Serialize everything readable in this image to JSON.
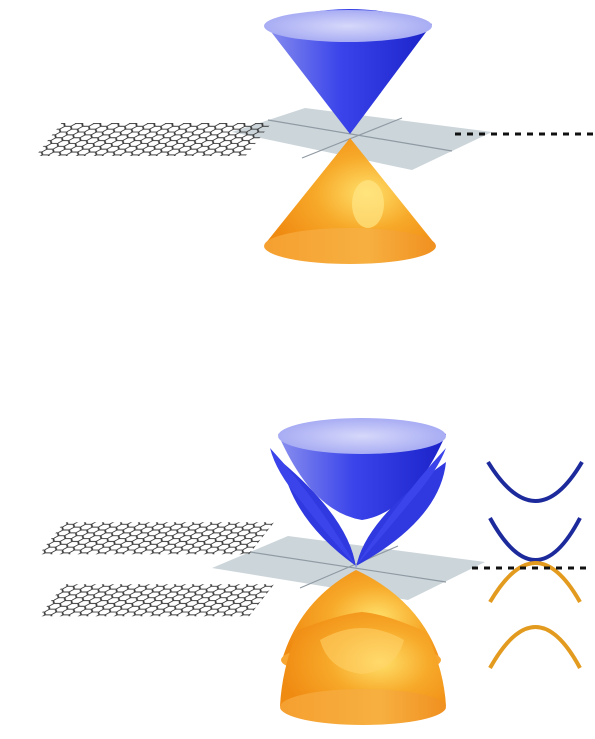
{
  "panels": [
    {
      "id": "monolayer",
      "label": "",
      "layers": 1,
      "conduction_band": {
        "shape": "cone",
        "count": 1
      },
      "valence_band": {
        "shape": "cone",
        "count": 1
      },
      "dispersion": "linear"
    },
    {
      "id": "bilayer",
      "label": "",
      "layers": 2,
      "conduction_band": {
        "shape": "paraboloid",
        "count": 2
      },
      "valence_band": {
        "shape": "paraboloid",
        "count": 2
      },
      "dispersion": "parabolic"
    }
  ],
  "colors": {
    "conduction_band": "#2a35e6",
    "conduction_band_light": "#aeb3f5",
    "valence_band": "#f59a1c",
    "valence_band_light": "#fbd978",
    "plane": "#c7d0d6",
    "lattice": "#3a3a3a",
    "band_line_conduction": "#1c2a9c",
    "band_line_valence": "#e39b1f",
    "fermi_level": "#111111"
  },
  "icons": {
    "lattice": "graphene-lattice-icon",
    "fermi_level": "fermi-level-dotted-line"
  }
}
